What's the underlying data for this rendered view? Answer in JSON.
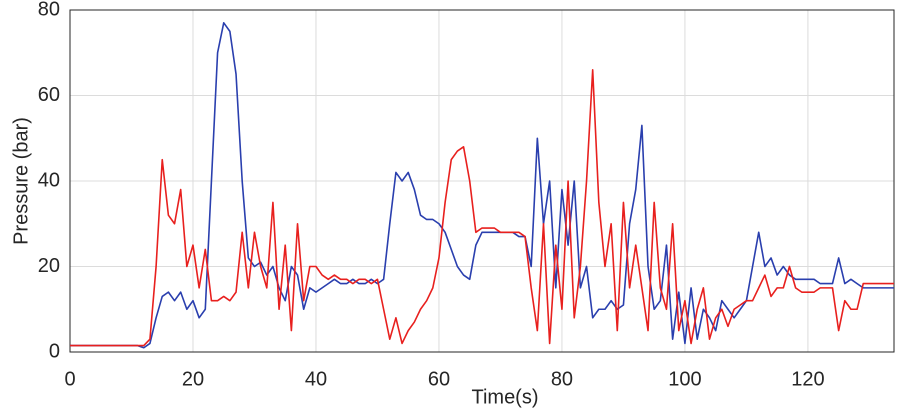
{
  "chart_data": {
    "type": "line",
    "x_label": "Time(s)",
    "y_label": "Pressure (bar)",
    "x": [
      0,
      1,
      2,
      3,
      4,
      5,
      6,
      7,
      8,
      9,
      10,
      11,
      12,
      13,
      14,
      15,
      16,
      17,
      18,
      19,
      20,
      21,
      22,
      23,
      24,
      25,
      26,
      27,
      28,
      29,
      30,
      31,
      32,
      33,
      34,
      35,
      36,
      37,
      38,
      39,
      40,
      41,
      42,
      43,
      44,
      45,
      46,
      47,
      48,
      49,
      50,
      51,
      52,
      53,
      54,
      55,
      56,
      57,
      58,
      59,
      60,
      61,
      62,
      63,
      64,
      65,
      66,
      67,
      68,
      69,
      70,
      71,
      72,
      73,
      74,
      75,
      76,
      77,
      78,
      79,
      80,
      81,
      82,
      83,
      84,
      85,
      86,
      87,
      88,
      89,
      90,
      91,
      92,
      93,
      94,
      95,
      96,
      97,
      98,
      99,
      100,
      101,
      102,
      103,
      104,
      105,
      106,
      107,
      108,
      109,
      110,
      111,
      112,
      113,
      114,
      115,
      116,
      117,
      118,
      119,
      120,
      121,
      122,
      123,
      124,
      125,
      126,
      127,
      128,
      129,
      130,
      131,
      132,
      133,
      134
    ],
    "series": [
      {
        "color": "#2a3fae",
        "values": [
          1.5,
          1.5,
          1.5,
          1.5,
          1.5,
          1.5,
          1.5,
          1.5,
          1.5,
          1.5,
          1.5,
          1.5,
          1,
          2,
          8,
          13,
          14,
          12,
          14,
          10,
          12,
          8,
          10,
          40,
          70,
          77,
          75,
          65,
          40,
          22,
          20,
          21,
          18,
          20,
          15,
          12,
          20,
          18,
          10,
          15,
          14,
          15,
          16,
          17,
          16,
          16,
          17,
          16,
          16,
          17,
          16,
          17,
          30,
          42,
          40,
          42,
          38,
          32,
          31,
          31,
          30,
          28,
          24,
          20,
          18,
          17,
          25,
          28,
          28,
          28,
          28,
          28,
          28,
          27,
          27,
          20,
          50,
          30,
          40,
          15,
          38,
          25,
          40,
          15,
          20,
          8,
          10,
          10,
          12,
          10,
          11,
          30,
          38,
          53,
          20,
          10,
          12,
          25,
          3,
          14,
          2,
          15,
          3,
          10,
          8,
          5,
          12,
          10,
          8,
          10,
          12,
          20,
          28,
          20,
          22,
          18,
          20,
          18,
          17,
          17,
          17,
          17,
          16,
          16,
          16,
          22,
          16,
          17,
          16,
          15,
          15,
          15,
          15,
          15,
          15
        ]
      },
      {
        "color": "#e8201e",
        "values": [
          1.5,
          1.5,
          1.5,
          1.5,
          1.5,
          1.5,
          1.5,
          1.5,
          1.5,
          1.5,
          1.5,
          1.5,
          1.5,
          3,
          20,
          45,
          32,
          30,
          38,
          20,
          25,
          15,
          24,
          12,
          12,
          13,
          12,
          14,
          28,
          15,
          28,
          20,
          15,
          35,
          10,
          25,
          5,
          30,
          12,
          20,
          20,
          18,
          17,
          18,
          17,
          17,
          16,
          17,
          17,
          16,
          17,
          10,
          3,
          8,
          2,
          5,
          7,
          10,
          12,
          15,
          22,
          35,
          45,
          47,
          48,
          40,
          28,
          29,
          29,
          29,
          28,
          28,
          28,
          28,
          27,
          15,
          5,
          30,
          2,
          25,
          10,
          40,
          8,
          20,
          40,
          66,
          35,
          20,
          30,
          5,
          35,
          15,
          25,
          15,
          5,
          35,
          15,
          10,
          30,
          5,
          12,
          2,
          10,
          15,
          3,
          8,
          10,
          6,
          10,
          11,
          12,
          12,
          15,
          18,
          13,
          15,
          15,
          20,
          15,
          14,
          14,
          14,
          15,
          15,
          15,
          5,
          12,
          10,
          10,
          16,
          16,
          16,
          16,
          16,
          16
        ]
      }
    ],
    "xlim": [
      0,
      134
    ],
    "ylim": [
      0,
      80
    ],
    "xticks": [
      0,
      20,
      40,
      60,
      80,
      100,
      120
    ],
    "yticks": [
      0,
      20,
      40,
      60,
      80
    ],
    "grid": true
  }
}
